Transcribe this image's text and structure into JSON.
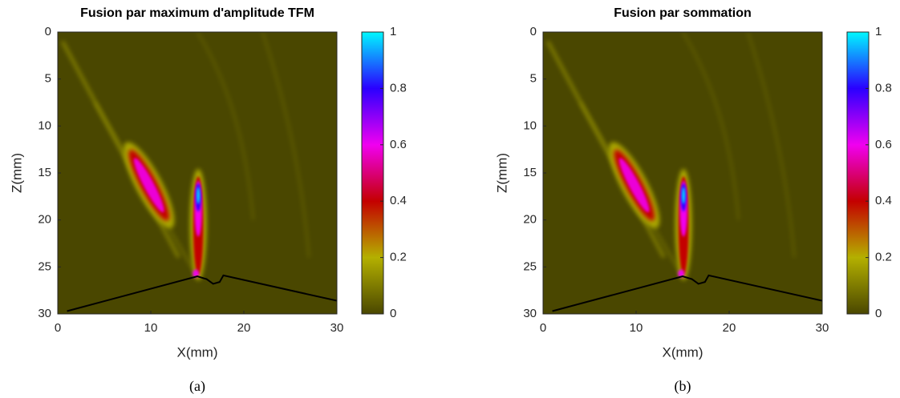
{
  "chart_data": [
    {
      "type": "heatmap",
      "title": "Fusion par maximum d'amplitude TFM",
      "xlabel": "X(mm)",
      "ylabel": "Z(mm)",
      "xlim": [
        0,
        30
      ],
      "ylim": [
        0,
        30
      ],
      "yreverse": true,
      "xticks": [
        0,
        10,
        20,
        30
      ],
      "yticks": [
        0,
        5,
        10,
        15,
        20,
        25,
        30
      ],
      "clim": [
        0,
        1
      ],
      "cticks": [
        0,
        0.2,
        0.4,
        0.6,
        0.8,
        1
      ],
      "colormap": [
        "#4a4700",
        "#b4b000",
        "#c40000",
        "#f000f0",
        "#2a00ff",
        "#00f8ff"
      ],
      "caption": "(a)"
    },
    {
      "type": "heatmap",
      "title": "Fusion par sommation",
      "xlabel": "X(mm)",
      "ylabel": "Z(mm)",
      "xlim": [
        0,
        30
      ],
      "ylim": [
        0,
        30
      ],
      "yreverse": true,
      "xticks": [
        0,
        10,
        20,
        30
      ],
      "yticks": [
        0,
        5,
        10,
        15,
        20,
        25,
        30
      ],
      "clim": [
        0,
        1
      ],
      "cticks": [
        0,
        0.2,
        0.4,
        0.6,
        0.8,
        1
      ],
      "colormap": [
        "#4a4700",
        "#b4b000",
        "#c40000",
        "#f000f0",
        "#2a00ff",
        "#00f8ff"
      ],
      "caption": "(b)"
    }
  ]
}
